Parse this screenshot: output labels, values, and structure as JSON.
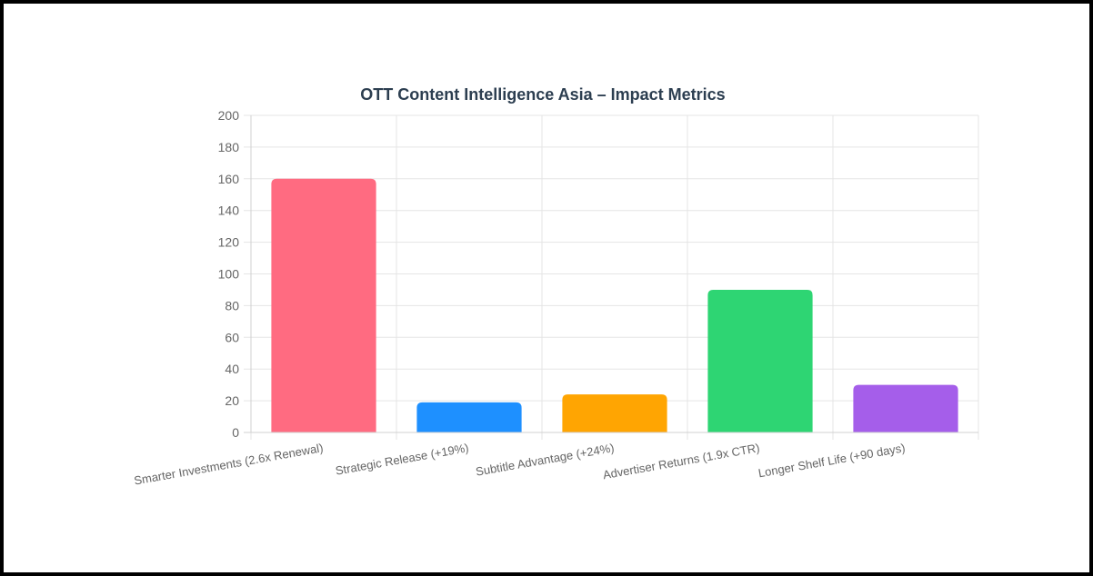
{
  "chart_data": {
    "type": "bar",
    "title": "OTT Content Intelligence Asia – Impact Metrics",
    "categories": [
      "Smarter Investments (2.6x Renewal)",
      "Strategic Release (+19%)",
      "Subtitle Advantage (+24%)",
      "Advertiser Returns (1.9x CTR)",
      "Longer Shelf Life (+90 days)"
    ],
    "values": [
      160,
      19,
      24,
      90,
      30
    ],
    "colors": [
      "#ff6b81",
      "#1e90ff",
      "#ffa502",
      "#2ed573",
      "#a55eea"
    ],
    "ylim": [
      0,
      200
    ],
    "yticks": [
      "0",
      "20",
      "40",
      "60",
      "80",
      "100",
      "120",
      "140",
      "160",
      "180",
      "200"
    ],
    "grid": true,
    "legend": "none"
  }
}
